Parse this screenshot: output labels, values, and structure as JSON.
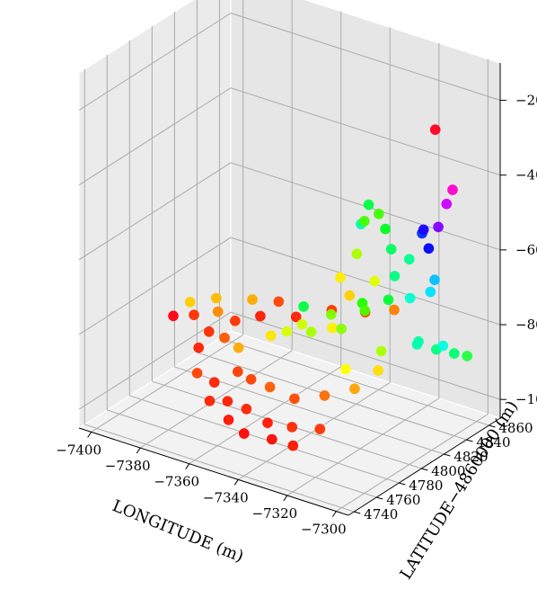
{
  "chart_data": {
    "type": "scatter3d",
    "colormap": "hsv",
    "grid": true,
    "xlabel": "LONGITUDE (m)",
    "ylabel": "LATITUDE−4860000 (m)",
    "zlabel": "",
    "xlim": [
      -7405,
      -7295
    ],
    "ylim": [
      4735,
      4870
    ],
    "zlim": [
      -105,
      -10
    ],
    "x_ticks": [
      -7400,
      -7380,
      -7360,
      -7340,
      -7320,
      -7300
    ],
    "x_tick_labels": [
      "−7400",
      "−7380",
      "−7360",
      "−7340",
      "−7320",
      "−7300"
    ],
    "y_ticks": [
      4740,
      4760,
      4780,
      4800,
      4820,
      4840,
      4860
    ],
    "y_tick_labels": [
      "4740",
      "4760",
      "4780",
      "4800",
      "4820",
      "4840",
      "4860"
    ],
    "z_ticks": [
      -100,
      -80,
      -60,
      -40,
      -20
    ],
    "z_tick_labels": [
      "−100",
      "−80",
      "−60",
      "−40",
      "−20"
    ],
    "points": [
      {
        "x": -7365,
        "y": 4780,
        "z": -98,
        "color": "#ff1a00"
      },
      {
        "x": -7355,
        "y": 4775,
        "z": -97,
        "color": "#ff2200"
      },
      {
        "x": -7345,
        "y": 4772,
        "z": -98,
        "color": "#ff1500"
      },
      {
        "x": -7335,
        "y": 4772,
        "z": -97,
        "color": "#ff2800"
      },
      {
        "x": -7325,
        "y": 4775,
        "z": -96,
        "color": "#ff3000"
      },
      {
        "x": -7375,
        "y": 4790,
        "z": -97,
        "color": "#ff2000"
      },
      {
        "x": -7370,
        "y": 4800,
        "z": -95,
        "color": "#ff3a00"
      },
      {
        "x": -7380,
        "y": 4810,
        "z": -90,
        "color": "#ff5500"
      },
      {
        "x": -7385,
        "y": 4815,
        "z": -85,
        "color": "#ff8800"
      },
      {
        "x": -7388,
        "y": 4820,
        "z": -83,
        "color": "#ffbb00"
      },
      {
        "x": -7360,
        "y": 4790,
        "z": -93,
        "color": "#ff4000"
      },
      {
        "x": -7350,
        "y": 4785,
        "z": -92,
        "color": "#ff5a00"
      },
      {
        "x": -7340,
        "y": 4785,
        "z": -93,
        "color": "#ff4a00"
      },
      {
        "x": -7330,
        "y": 4790,
        "z": -91,
        "color": "#ff6a00"
      },
      {
        "x": -7320,
        "y": 4795,
        "z": -88,
        "color": "#ffa000"
      },
      {
        "x": -7315,
        "y": 4805,
        "z": -84,
        "color": "#ffdd00"
      },
      {
        "x": -7360,
        "y": 4830,
        "z": -84,
        "color": "#ff2000"
      },
      {
        "x": -7350,
        "y": 4840,
        "z": -82,
        "color": "#ff3500"
      },
      {
        "x": -7340,
        "y": 4848,
        "z": -82,
        "color": "#ff5000"
      },
      {
        "x": -7330,
        "y": 4852,
        "z": -80,
        "color": "#ff8000"
      },
      {
        "x": -7370,
        "y": 4820,
        "z": -84,
        "color": "#ff1800"
      },
      {
        "x": -7378,
        "y": 4815,
        "z": -86,
        "color": "#ff3000"
      },
      {
        "x": -7345,
        "y": 4845,
        "z": -78,
        "color": "#ffd000"
      },
      {
        "x": -7338,
        "y": 4852,
        "z": -74,
        "color": "#e0ff00"
      },
      {
        "x": -7350,
        "y": 4800,
        "z": -80,
        "color": "#d8ff00"
      },
      {
        "x": -7340,
        "y": 4800,
        "z": -78,
        "color": "#aaff00"
      },
      {
        "x": -7330,
        "y": 4805,
        "z": -76,
        "color": "#88ff00"
      },
      {
        "x": -7325,
        "y": 4815,
        "z": -72,
        "color": "#44ff00"
      },
      {
        "x": -7320,
        "y": 4825,
        "z": -70,
        "color": "#00ff30"
      },
      {
        "x": -7322,
        "y": 4835,
        "z": -66,
        "color": "#00ff80"
      },
      {
        "x": -7328,
        "y": 4845,
        "z": -62,
        "color": "#00ff60"
      },
      {
        "x": -7335,
        "y": 4855,
        "z": -60,
        "color": "#00ff20"
      },
      {
        "x": -7340,
        "y": 4860,
        "z": -58,
        "color": "#40ff00"
      },
      {
        "x": -7345,
        "y": 4862,
        "z": -57,
        "color": "#00ff40"
      },
      {
        "x": -7318,
        "y": 4840,
        "z": -72,
        "color": "#00ffd0"
      },
      {
        "x": -7312,
        "y": 4845,
        "z": -70,
        "color": "#00e0ff"
      },
      {
        "x": -7310,
        "y": 4830,
        "z": -80,
        "color": "#00ffa0"
      },
      {
        "x": -7305,
        "y": 4835,
        "z": -82,
        "color": "#00ff80"
      },
      {
        "x": -7300,
        "y": 4840,
        "z": -83,
        "color": "#00ff70"
      },
      {
        "x": -7297,
        "y": 4845,
        "z": -84,
        "color": "#20ff40"
      },
      {
        "x": -7315,
        "y": 4850,
        "z": -60,
        "color": "#0000ff"
      },
      {
        "x": -7318,
        "y": 4852,
        "z": -56,
        "color": "#1a00ff"
      },
      {
        "x": -7320,
        "y": 4855,
        "z": -58,
        "color": "#0030ff"
      },
      {
        "x": -7312,
        "y": 4852,
        "z": -54,
        "color": "#8000ff"
      },
      {
        "x": -7310,
        "y": 4855,
        "z": -48,
        "color": "#cc00ff"
      },
      {
        "x": -7308,
        "y": 4856,
        "z": -44,
        "color": "#ff00cc"
      },
      {
        "x": -7316,
        "y": 4858,
        "z": -30,
        "color": "#ff0020"
      },
      {
        "x": -7390,
        "y": 4818,
        "z": -92,
        "color": "#ff2a00"
      },
      {
        "x": -7398,
        "y": 4822,
        "z": -90,
        "color": "#ff3000"
      },
      {
        "x": -7395,
        "y": 4812,
        "z": -84,
        "color": "#ffcc00"
      },
      {
        "x": -7382,
        "y": 4790,
        "z": -96,
        "color": "#ff4000"
      },
      {
        "x": -7372,
        "y": 4805,
        "z": -90,
        "color": "#ffa800"
      },
      {
        "x": -7362,
        "y": 4812,
        "z": -86,
        "color": "#ffe600"
      },
      {
        "x": -7352,
        "y": 4818,
        "z": -82,
        "color": "#ccff00"
      },
      {
        "x": -7342,
        "y": 4822,
        "z": -78,
        "color": "#80ff00"
      },
      {
        "x": -7332,
        "y": 4828,
        "z": -74,
        "color": "#20ff00"
      },
      {
        "x": -7336,
        "y": 4810,
        "z": -78,
        "color": "#ffee00"
      },
      {
        "x": -7326,
        "y": 4800,
        "z": -85,
        "color": "#ffff00"
      },
      {
        "x": -7316,
        "y": 4810,
        "z": -80,
        "color": "#aaff00"
      },
      {
        "x": -7306,
        "y": 4820,
        "z": -78,
        "color": "#00ffb0"
      },
      {
        "x": -7300,
        "y": 4830,
        "z": -79,
        "color": "#00ffe0"
      },
      {
        "x": -7308,
        "y": 4840,
        "z": -65,
        "color": "#00c0ff"
      },
      {
        "x": -7322,
        "y": 4848,
        "z": -64,
        "color": "#00ff90"
      },
      {
        "x": -7356,
        "y": 4828,
        "z": -80,
        "color": "#00ff40"
      },
      {
        "x": -7368,
        "y": 4832,
        "z": -82,
        "color": "#ff4400"
      },
      {
        "x": -7376,
        "y": 4826,
        "z": -82,
        "color": "#ffaa00"
      },
      {
        "x": -7352,
        "y": 4852,
        "z": -76,
        "color": "#ffee00"
      },
      {
        "x": -7348,
        "y": 4858,
        "z": -70,
        "color": "#aaff00"
      },
      {
        "x": -7344,
        "y": 4856,
        "z": -60,
        "color": "#44ff00"
      },
      {
        "x": -7350,
        "y": 4866,
        "z": -64,
        "color": "#00ffaa"
      },
      {
        "x": -7400,
        "y": 4808,
        "z": -88,
        "color": "#ff0010"
      },
      {
        "x": -7386,
        "y": 4800,
        "z": -92,
        "color": "#ff2000"
      },
      {
        "x": -7360,
        "y": 4770,
        "z": -100,
        "color": "#ff1000"
      },
      {
        "x": -7340,
        "y": 4765,
        "z": -100,
        "color": "#ff0800"
      },
      {
        "x": -7330,
        "y": 4762,
        "z": -99,
        "color": "#ff1500"
      },
      {
        "x": -7370,
        "y": 4775,
        "z": -98,
        "color": "#ff2000"
      },
      {
        "x": -7350,
        "y": 4762,
        "z": -100,
        "color": "#ff0500"
      }
    ]
  }
}
